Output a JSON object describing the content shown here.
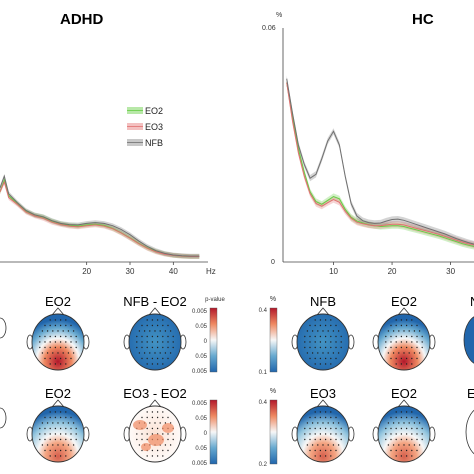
{
  "panels": {
    "adhd_title": "ADHD",
    "hc_title": "HC"
  },
  "chart_data": [
    {
      "type": "line",
      "panel": "ADHD",
      "xlabel": "Hz",
      "x_tick_labels": [
        "20",
        "30",
        "40"
      ],
      "xlim": [
        0,
        48
      ],
      "ylim": [
        0,
        0.06
      ],
      "legend": {
        "placement": "center",
        "entries": [
          "EO2",
          "EO3",
          "NFB"
        ]
      },
      "series": [
        {
          "name": "EO2",
          "color": "#66cc44",
          "x": [
            0,
            1,
            2,
            4,
            6,
            8,
            10,
            12,
            14,
            16,
            18,
            20,
            22,
            24,
            26,
            28,
            30,
            32,
            34,
            36,
            38,
            40,
            42,
            44,
            46
          ],
          "y": [
            0.018,
            0.021,
            0.017,
            0.015,
            0.013,
            0.012,
            0.0115,
            0.0105,
            0.0098,
            0.0094,
            0.0092,
            0.0095,
            0.0097,
            0.0094,
            0.0086,
            0.0075,
            0.0062,
            0.0048,
            0.0036,
            0.0027,
            0.0021,
            0.0017,
            0.0015,
            0.0014,
            0.0014
          ]
        },
        {
          "name": "EO3",
          "color": "#e07070",
          "x": [
            0,
            1,
            2,
            4,
            6,
            8,
            10,
            12,
            14,
            16,
            18,
            20,
            22,
            24,
            26,
            28,
            30,
            32,
            34,
            36,
            38,
            40,
            42,
            44,
            46
          ],
          "y": [
            0.018,
            0.0205,
            0.0165,
            0.0148,
            0.0128,
            0.0118,
            0.0112,
            0.0102,
            0.0096,
            0.0092,
            0.009,
            0.0093,
            0.0095,
            0.0092,
            0.0085,
            0.0074,
            0.0061,
            0.0047,
            0.0035,
            0.0026,
            0.002,
            0.0017,
            0.0015,
            0.0014,
            0.0014
          ]
        },
        {
          "name": "NFB",
          "color": "#707070",
          "x": [
            0,
            1,
            2,
            4,
            6,
            8,
            10,
            12,
            14,
            16,
            18,
            20,
            22,
            24,
            26,
            28,
            30,
            32,
            34,
            36,
            38,
            40,
            42,
            44,
            46
          ],
          "y": [
            0.019,
            0.022,
            0.0175,
            0.0152,
            0.0132,
            0.0121,
            0.0116,
            0.0106,
            0.0099,
            0.0096,
            0.0095,
            0.0099,
            0.0101,
            0.0099,
            0.0093,
            0.0083,
            0.007,
            0.0054,
            0.004,
            0.0029,
            0.0022,
            0.0018,
            0.0016,
            0.0015,
            0.0015
          ]
        }
      ]
    },
    {
      "type": "line",
      "panel": "HC",
      "ylabel": "%",
      "x_tick_labels": [
        "10",
        "20",
        "30"
      ],
      "y_tick_labels": [
        "0",
        "0.06"
      ],
      "xlim": [
        0,
        34
      ],
      "ylim": [
        0,
        0.06
      ],
      "series": [
        {
          "name": "EO2",
          "color": "#66cc44",
          "x": [
            2,
            3,
            4,
            5,
            6,
            7,
            8,
            9,
            10,
            11,
            12,
            13,
            14,
            15,
            16,
            17,
            18,
            19,
            20,
            21,
            22,
            23,
            24,
            25,
            26,
            27,
            28,
            29,
            30,
            31,
            32,
            33,
            34
          ],
          "y": [
            0.046,
            0.037,
            0.029,
            0.023,
            0.018,
            0.0155,
            0.0148,
            0.0158,
            0.0168,
            0.0162,
            0.0135,
            0.0115,
            0.0105,
            0.01,
            0.0096,
            0.0093,
            0.0091,
            0.0092,
            0.0093,
            0.0093,
            0.0091,
            0.0087,
            0.0083,
            0.0079,
            0.0075,
            0.0071,
            0.0067,
            0.0062,
            0.0057,
            0.0052,
            0.0047,
            0.0043,
            0.004
          ]
        },
        {
          "name": "EO3",
          "color": "#e07070",
          "x": [
            2,
            3,
            4,
            5,
            6,
            7,
            8,
            9,
            10,
            11,
            12,
            13,
            14,
            15,
            16,
            17,
            18,
            19,
            20,
            21,
            22,
            23,
            24,
            25,
            26,
            27,
            28,
            29,
            30,
            31,
            32,
            33,
            34
          ],
          "y": [
            0.046,
            0.036,
            0.028,
            0.022,
            0.0175,
            0.015,
            0.0143,
            0.0152,
            0.016,
            0.0153,
            0.013,
            0.0112,
            0.0102,
            0.0098,
            0.0095,
            0.0093,
            0.0093,
            0.0095,
            0.0097,
            0.0097,
            0.0095,
            0.0091,
            0.0087,
            0.0083,
            0.0079,
            0.0075,
            0.0071,
            0.0066,
            0.0061,
            0.0056,
            0.0051,
            0.0047,
            0.0044
          ]
        },
        {
          "name": "NFB",
          "color": "#707070",
          "x": [
            2,
            3,
            4,
            5,
            6,
            7,
            8,
            9,
            10,
            11,
            12,
            13,
            14,
            15,
            16,
            17,
            18,
            19,
            20,
            21,
            22,
            23,
            24,
            25,
            26,
            27,
            28,
            29,
            30,
            31,
            32,
            33,
            34
          ],
          "y": [
            0.047,
            0.038,
            0.03,
            0.025,
            0.0215,
            0.0225,
            0.0265,
            0.031,
            0.0335,
            0.03,
            0.022,
            0.015,
            0.0118,
            0.0106,
            0.0101,
            0.0099,
            0.01,
            0.0105,
            0.0109,
            0.011,
            0.0107,
            0.0102,
            0.0097,
            0.0092,
            0.0087,
            0.0082,
            0.0077,
            0.0072,
            0.0066,
            0.006,
            0.0055,
            0.005,
            0.0046
          ]
        }
      ]
    }
  ],
  "topomaps": {
    "adhd_row1": [
      {
        "label": "EO2",
        "kind": "power"
      },
      {
        "label": "NFB - EO2",
        "kind": "pvalue"
      }
    ],
    "adhd_row2": [
      {
        "label": "EO2",
        "kind": "power"
      },
      {
        "label": "EO3 - EO2",
        "kind": "pvalue"
      }
    ],
    "hc_row1": [
      {
        "label": "NFB",
        "kind": "power"
      },
      {
        "label": "EO2",
        "kind": "power"
      }
    ],
    "hc_row2": [
      {
        "label": "EO3",
        "kind": "power"
      },
      {
        "label": "EO2",
        "kind": "power"
      }
    ],
    "partial_labels": [
      "N",
      "E"
    ]
  },
  "colorbars": {
    "pvalue1": {
      "title": "p-value",
      "ticks": [
        "0.005",
        "0.05",
        "0",
        "0.05",
        "0.005"
      ]
    },
    "pvalue2": {
      "ticks": [
        "0.005",
        "0.05",
        "0",
        "0.05",
        "0.005"
      ]
    },
    "power1": {
      "title": "%",
      "ticks": [
        "0.4",
        "0.1"
      ]
    },
    "power2": {
      "title": "%",
      "ticks": [
        "0.4",
        "0.2"
      ]
    }
  },
  "colors": {
    "red": "#b2182b",
    "blue": "#2166ac",
    "white": "#f7f7f7"
  }
}
